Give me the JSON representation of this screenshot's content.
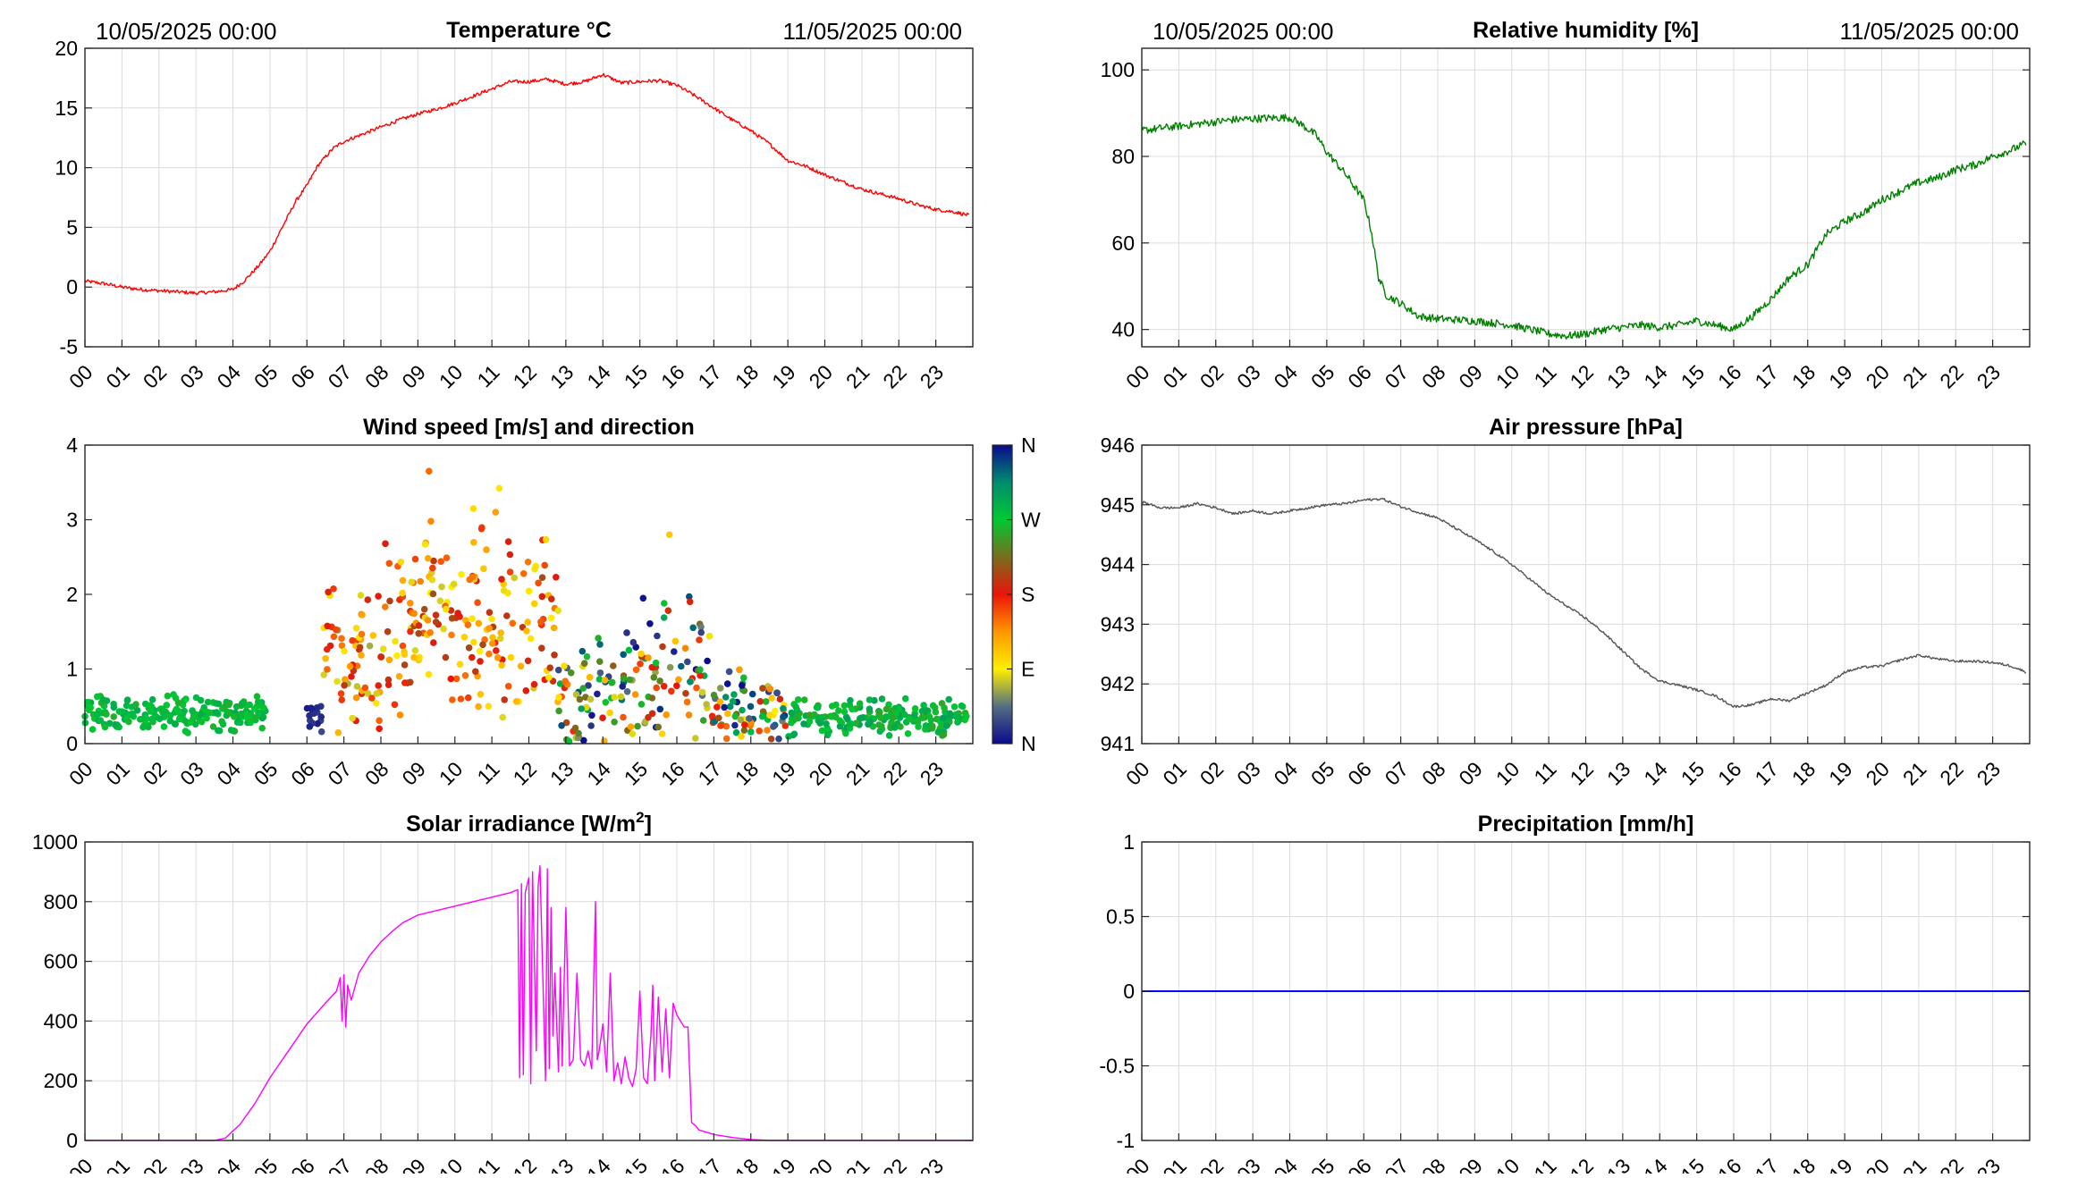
{
  "colors": {
    "temperature": "#ff0000",
    "humidity": "#007f00",
    "pressure": "#555555",
    "solar": "#ff00ff",
    "precipitation": "#0000ff"
  },
  "hour_ticks": [
    "00",
    "01",
    "02",
    "03",
    "04",
    "05",
    "06",
    "07",
    "08",
    "09",
    "10",
    "11",
    "12",
    "13",
    "14",
    "15",
    "16",
    "17",
    "18",
    "19",
    "20",
    "21",
    "22",
    "23"
  ],
  "date_start": "10/05/2025 00:00",
  "date_end": "11/05/2025 00:00",
  "chart_data": [
    {
      "id": "temperature",
      "type": "line",
      "title": "Temperature °C",
      "color": "#ff0000",
      "xlim": [
        0,
        24
      ],
      "ylim": [
        -5,
        20
      ],
      "yticks": [
        -5,
        0,
        5,
        10,
        15,
        20
      ],
      "ytick_labels": [
        "-5",
        "0",
        "5",
        "10",
        "15",
        "20"
      ],
      "grid": true,
      "date_labels": true,
      "noise": 0.15,
      "x": [
        0,
        0.5,
        1,
        1.5,
        2,
        2.5,
        3,
        3.5,
        4,
        4.3,
        4.7,
        5,
        5.3,
        5.7,
        6,
        6.3,
        6.7,
        7,
        7.5,
        8,
        8.5,
        9,
        9.5,
        10,
        10.5,
        11,
        11.5,
        12,
        12.5,
        13,
        13.5,
        14,
        14.5,
        15,
        15.5,
        16,
        16.5,
        17,
        17.5,
        18,
        18.5,
        19,
        19.5,
        20,
        20.5,
        21,
        21.5,
        22,
        22.5,
        23,
        23.5,
        23.9
      ],
      "y": [
        0.5,
        0.3,
        0,
        -0.2,
        -0.3,
        -0.4,
        -0.5,
        -0.4,
        -0.2,
        0.5,
        1.8,
        3,
        4.8,
        7.2,
        8.5,
        10.2,
        11.6,
        12.2,
        12.8,
        13.4,
        14,
        14.5,
        14.9,
        15.4,
        16,
        16.6,
        17.2,
        17.2,
        17.4,
        17,
        17.2,
        17.8,
        17.1,
        17.2,
        17.3,
        16.9,
        16,
        15,
        14,
        13.1,
        12,
        10.6,
        10.1,
        9.4,
        8.8,
        8.2,
        7.8,
        7.4,
        6.9,
        6.5,
        6.3,
        6
      ]
    },
    {
      "id": "humidity",
      "type": "line",
      "title": "Relative humidity [%]",
      "color": "#007f00",
      "xlim": [
        0,
        24
      ],
      "ylim": [
        36,
        105
      ],
      "yticks": [
        40,
        60,
        80,
        100
      ],
      "ytick_labels": [
        "40",
        "60",
        "80",
        "100"
      ],
      "grid": true,
      "date_labels": true,
      "noise": 0.9,
      "x": [
        0,
        0.5,
        1,
        1.5,
        2,
        2.5,
        3,
        3.5,
        4,
        4.3,
        4.7,
        5,
        5.5,
        6,
        6.2,
        6.4,
        6.6,
        7,
        7.5,
        8,
        9,
        10,
        10.5,
        11,
        11.5,
        12,
        12.5,
        13,
        13.5,
        14,
        14.5,
        15,
        15.5,
        16,
        16.5,
        17,
        17.5,
        18,
        18.5,
        19,
        19.5,
        20,
        20.5,
        21,
        21.5,
        22,
        22.5,
        23,
        23.5,
        23.9
      ],
      "y": [
        86,
        86.5,
        87,
        87.5,
        88,
        88.5,
        88.7,
        88.9,
        89,
        87.5,
        85,
        81,
        76,
        70,
        63,
        52,
        48,
        46,
        43,
        42.5,
        42,
        41,
        40,
        39,
        38.5,
        39,
        40,
        40.5,
        41,
        40.5,
        41,
        42,
        41,
        40,
        43,
        47,
        52,
        55,
        62,
        65,
        67,
        70,
        72,
        74,
        75,
        77,
        78,
        80,
        81.5,
        83
      ]
    },
    {
      "id": "wind",
      "type": "scatter",
      "title": "Wind speed [m/s] and direction",
      "xlim": [
        0,
        24
      ],
      "ylim": [
        0,
        4
      ],
      "yticks": [
        0,
        1,
        2,
        3,
        4
      ],
      "ytick_labels": [
        "0",
        "1",
        "2",
        "3",
        "4"
      ],
      "grid": false,
      "date_labels": false,
      "colorbar": {
        "labels": [
          "N",
          "W",
          "S",
          "E",
          "N"
        ],
        "direction_order": "top-to-bottom"
      },
      "segments": [
        {
          "x": [
            0,
            4.9
          ],
          "speed_mean": 0.4,
          "speed_spread": 0.28,
          "direction": [
            255,
            292
          ],
          "per_hour": 42
        },
        {
          "x": [
            6,
            6.4
          ],
          "speed_mean": 0.35,
          "speed_spread": 0.3,
          "direction": [
            5,
            30
          ],
          "per_hour": 40
        },
        {
          "x": [
            6.4,
            8
          ],
          "speed_mean": 1.15,
          "speed_spread": 1.1,
          "direction": [
            60,
            200
          ],
          "per_hour": 40
        },
        {
          "x": [
            8,
            12.8
          ],
          "speed_mean": 1.6,
          "speed_spread": 1.4,
          "direction": [
            75,
            210
          ],
          "per_hour": 40
        },
        {
          "x": [
            12.8,
            15
          ],
          "speed_mean": 0.7,
          "speed_spread": 0.9,
          "direction": [
            0,
            360
          ],
          "per_hour": 36
        },
        {
          "x": [
            15,
            16.9
          ],
          "speed_mean": 1.0,
          "speed_spread": 1.1,
          "direction": [
            0,
            360
          ],
          "per_hour": 36
        },
        {
          "x": [
            16.9,
            19
          ],
          "speed_mean": 0.45,
          "speed_spread": 0.6,
          "direction": [
            0,
            360
          ],
          "per_hour": 36
        },
        {
          "x": [
            19,
            23.9
          ],
          "speed_mean": 0.35,
          "speed_spread": 0.3,
          "direction": [
            250,
            300
          ],
          "per_hour": 40
        }
      ],
      "outliers": [
        {
          "x": 9.3,
          "speed": 3.65,
          "direction": 150
        },
        {
          "x": 11.2,
          "speed": 3.42,
          "direction": 95
        },
        {
          "x": 10.5,
          "speed": 3.15,
          "direction": 100
        },
        {
          "x": 11.1,
          "speed": 3.1,
          "direction": 130
        },
        {
          "x": 9.35,
          "speed": 2.98,
          "direction": 140
        },
        {
          "x": 15.8,
          "speed": 2.8,
          "direction": 110
        }
      ]
    },
    {
      "id": "pressure",
      "type": "line",
      "title": "Air pressure [hPa]",
      "color": "#555555",
      "xlim": [
        0,
        24
      ],
      "ylim": [
        941,
        946
      ],
      "yticks": [
        941,
        942,
        943,
        944,
        945,
        946
      ],
      "ytick_labels": [
        "941",
        "942",
        "943",
        "944",
        "945",
        "946"
      ],
      "grid": true,
      "date_labels": false,
      "noise": 0.02,
      "x": [
        0,
        0.5,
        1,
        1.5,
        2,
        2.5,
        3,
        3.5,
        4,
        4.5,
        5,
        5.5,
        6,
        6.5,
        7,
        7.5,
        8,
        8.5,
        9,
        9.5,
        10,
        10.5,
        11,
        11.5,
        12,
        12.5,
        13,
        13.5,
        14,
        14.5,
        15,
        15.5,
        16,
        16.5,
        17,
        17.5,
        18,
        18.5,
        19,
        19.5,
        20,
        20.5,
        21,
        21.5,
        22,
        22.5,
        23,
        23.5,
        23.9
      ],
      "y": [
        945.05,
        944.95,
        944.95,
        945.02,
        944.95,
        944.85,
        944.9,
        944.85,
        944.9,
        944.95,
        945.0,
        945.02,
        945.08,
        945.1,
        944.97,
        944.87,
        944.78,
        944.6,
        944.42,
        944.22,
        944.0,
        943.75,
        943.5,
        943.3,
        943.1,
        942.85,
        942.55,
        942.25,
        942.05,
        941.98,
        941.9,
        941.8,
        941.62,
        941.65,
        941.75,
        941.72,
        941.85,
        941.98,
        942.2,
        942.28,
        942.3,
        942.4,
        942.48,
        942.42,
        942.38,
        942.38,
        942.36,
        942.3,
        942.2
      ]
    },
    {
      "id": "solar",
      "type": "line",
      "title": "Solar irradiance [W/m2]",
      "title_main": "Solar irradiance [W/m",
      "title_sup": "2",
      "title_end": "]",
      "color": "#ff00ff",
      "xlim": [
        0,
        24
      ],
      "ylim": [
        0,
        1000
      ],
      "yticks": [
        0,
        200,
        400,
        600,
        800,
        1000
      ],
      "ytick_labels": [
        "0",
        "200",
        "400",
        "600",
        "800",
        "1000"
      ],
      "grid": true,
      "date_labels": false,
      "noise": 0,
      "x": [
        0,
        3.5,
        3.8,
        4.2,
        4.6,
        5,
        5.5,
        6,
        6.5,
        6.8,
        6.9,
        6.95,
        7.0,
        7.05,
        7.1,
        7.2,
        7.4,
        7.7,
        8,
        8.3,
        8.6,
        9,
        9.5,
        10,
        10.5,
        11,
        11.5,
        11.7,
        11.75,
        11.8,
        11.85,
        11.9,
        12.0,
        12.05,
        12.1,
        12.2,
        12.25,
        12.3,
        12.45,
        12.5,
        12.55,
        12.6,
        12.65,
        12.7,
        12.8,
        12.85,
        12.9,
        13.0,
        13.1,
        13.2,
        13.3,
        13.4,
        13.5,
        13.6,
        13.7,
        13.8,
        13.85,
        13.9,
        14.0,
        14.1,
        14.2,
        14.3,
        14.4,
        14.5,
        14.6,
        14.7,
        14.8,
        14.9,
        15.0,
        15.1,
        15.2,
        15.3,
        15.35,
        15.4,
        15.5,
        15.6,
        15.7,
        15.8,
        15.9,
        16.0,
        16.2,
        16.3,
        16.4,
        16.5,
        16.6,
        17,
        17.5,
        18,
        18.5,
        19,
        24
      ],
      "y": [
        0,
        0,
        8,
        55,
        125,
        210,
        300,
        390,
        460,
        500,
        545,
        400,
        555,
        380,
        520,
        470,
        560,
        620,
        665,
        700,
        730,
        755,
        770,
        785,
        800,
        815,
        830,
        840,
        210,
        860,
        220,
        830,
        880,
        190,
        900,
        300,
        850,
        920,
        200,
        910,
        240,
        780,
        350,
        560,
        230,
        580,
        250,
        780,
        250,
        270,
        560,
        270,
        250,
        300,
        240,
        800,
        270,
        300,
        390,
        230,
        560,
        200,
        260,
        190,
        280,
        210,
        180,
        240,
        500,
        210,
        190,
        350,
        520,
        200,
        480,
        230,
        440,
        210,
        460,
        420,
        380,
        380,
        60,
        50,
        35,
        20,
        10,
        3,
        0,
        0,
        0
      ]
    },
    {
      "id": "precipitation",
      "type": "line",
      "title": "Precipitation [mm/h]",
      "color": "#0000ff",
      "xlim": [
        0,
        24
      ],
      "ylim": [
        -1,
        1
      ],
      "yticks": [
        -1,
        -0.5,
        0,
        0.5,
        1
      ],
      "ytick_labels": [
        "-1",
        "-0.5",
        "0",
        "0.5",
        "1"
      ],
      "grid": true,
      "date_labels": false,
      "noise": 0,
      "x": [
        0,
        24
      ],
      "y": [
        0,
        0
      ]
    }
  ]
}
